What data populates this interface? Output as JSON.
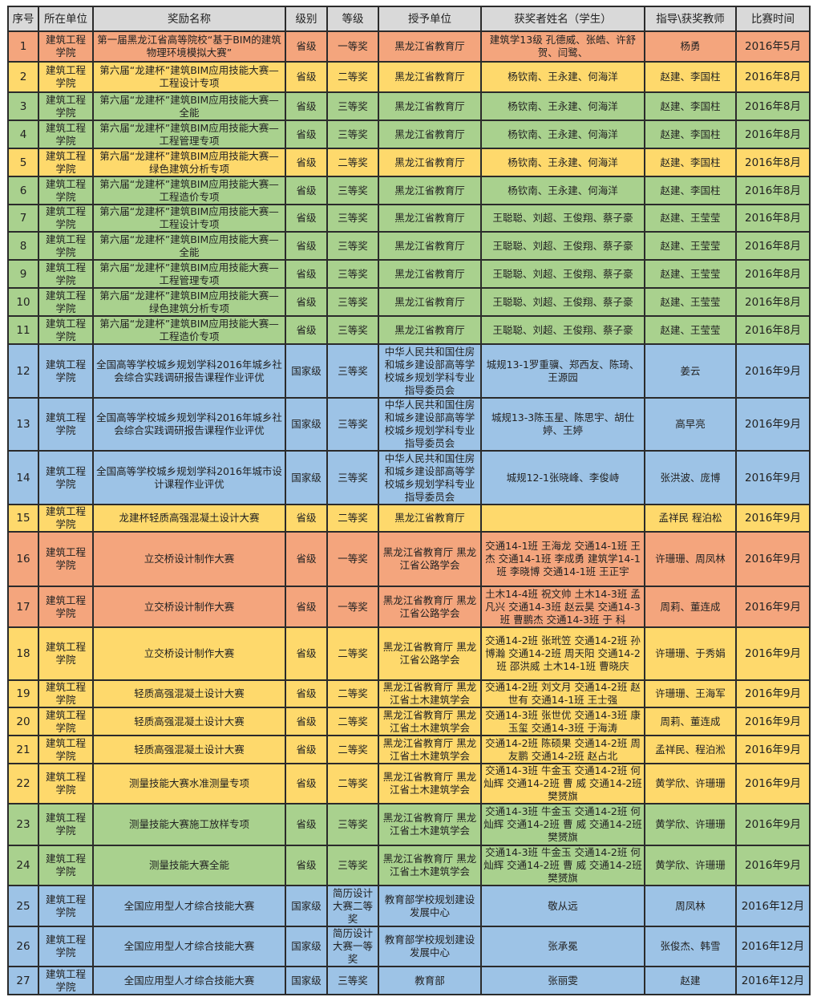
{
  "colors": {
    "header": "#d9d9d9",
    "orange": "#f4a57d",
    "yellow": "#fed96c",
    "green": "#a9d18e",
    "blue": "#9dc3e6"
  },
  "headers": [
    "序号",
    "所在单位",
    "奖励名称",
    "级别",
    "等级",
    "授予单位",
    "获奖者姓名（学生）",
    "指导\\获奖教师",
    "比赛时间"
  ],
  "rows": [
    {
      "no": "1",
      "unit": "建筑工程学院",
      "award": "第一届黑龙江省高等院校“基于BIM的建筑物理环境模拟大赛”",
      "level": "省级",
      "grade": "一等奖",
      "grantor": "黑龙江省教育厅",
      "students": "建筑学13级 孔德威、张皓、许舒贺、闫鹭、",
      "teacher": "杨勇",
      "date": "2016年5月",
      "color": "orange"
    },
    {
      "no": "2",
      "unit": "建筑工程学院",
      "award": "第六届“龙建杯”建筑BIM应用技能大赛—工程设计专项",
      "level": "省级",
      "grade": "二等奖",
      "grantor": "黑龙江省教育厅",
      "students": "杨钦南、王永建、何海洋",
      "teacher": "赵建、李国柱",
      "date": "2016年8月",
      "color": "yellow"
    },
    {
      "no": "3",
      "unit": "建筑工程学院",
      "award": "第六届“龙建杯”建筑BIM应用技能大赛—全能",
      "level": "省级",
      "grade": "三等奖",
      "grantor": "黑龙江省教育厅",
      "students": "杨钦南、王永建、何海洋",
      "teacher": "赵建、李国柱",
      "date": "2016年8月",
      "color": "green"
    },
    {
      "no": "4",
      "unit": "建筑工程学院",
      "award": "第六届“龙建杯”建筑BIM应用技能大赛—工程管理专项",
      "level": "省级",
      "grade": "三等奖",
      "grantor": "黑龙江省教育厅",
      "students": "杨钦南、王永建、何海洋",
      "teacher": "赵建、李国柱",
      "date": "2016年8月",
      "color": "green"
    },
    {
      "no": "5",
      "unit": "建筑工程学院",
      "award": "第六届“龙建杯”建筑BIM应用技能大赛—绿色建筑分析专项",
      "level": "省级",
      "grade": "二等奖",
      "grantor": "黑龙江省教育厅",
      "students": "杨钦南、王永建、何海洋",
      "teacher": "赵建、李国柱",
      "date": "2016年8月",
      "color": "yellow"
    },
    {
      "no": "6",
      "unit": "建筑工程学院",
      "award": "第六届“龙建杯”建筑BIM应用技能大赛—工程造价专项",
      "level": "省级",
      "grade": "三等奖",
      "grantor": "黑龙江省教育厅",
      "students": "杨钦南、王永建、何海洋",
      "teacher": "赵建、李国柱",
      "date": "2016年8月",
      "color": "green"
    },
    {
      "no": "7",
      "unit": "建筑工程学院",
      "award": "第六届“龙建杯”建筑BIM应用技能大赛—工程设计专项",
      "level": "省级",
      "grade": "三等奖",
      "grantor": "黑龙江省教育厅",
      "students": "王聪聪、刘超、王俊翔、蔡子豪",
      "teacher": "赵建、王莹莹",
      "date": "2016年8月",
      "color": "green"
    },
    {
      "no": "8",
      "unit": "建筑工程学院",
      "award": "第六届“龙建杯”建筑BIM应用技能大赛—全能",
      "level": "省级",
      "grade": "三等奖",
      "grantor": "黑龙江省教育厅",
      "students": "王聪聪、刘超、王俊翔、蔡子豪",
      "teacher": "赵建、王莹莹",
      "date": "2016年8月",
      "color": "green"
    },
    {
      "no": "9",
      "unit": "建筑工程学院",
      "award": "第六届“龙建杯”建筑BIM应用技能大赛—工程管理专项",
      "level": "省级",
      "grade": "三等奖",
      "grantor": "黑龙江省教育厅",
      "students": "王聪聪、刘超、王俊翔、蔡子豪",
      "teacher": "赵建、王莹莹",
      "date": "2016年8月",
      "color": "green"
    },
    {
      "no": "10",
      "unit": "建筑工程学院",
      "award": "第六届“龙建杯”建筑BIM应用技能大赛—绿色建筑分析专项",
      "level": "省级",
      "grade": "三等奖",
      "grantor": "黑龙江省教育厅",
      "students": "王聪聪、刘超、王俊翔、蔡子豪",
      "teacher": "赵建、王莹莹",
      "date": "2016年8月",
      "color": "green"
    },
    {
      "no": "11",
      "unit": "建筑工程学院",
      "award": "第六届“龙建杯”建筑BIM应用技能大赛—工程造价专项",
      "level": "省级",
      "grade": "三等奖",
      "grantor": "黑龙江省教育厅",
      "students": "王聪聪、刘超、王俊翔、蔡子豪",
      "teacher": "赵建、王莹莹",
      "date": "2016年8月",
      "color": "green"
    },
    {
      "no": "12",
      "unit": "建筑工程学院",
      "award": "全国高等学校城乡规划学科2016年城乡社会综合实践调研报告课程作业评优",
      "level": "国家级",
      "grade": "三等奖",
      "grantor": "中华人民共和国住房和城乡建设部高等学校城乡规划学科专业指导委员会",
      "students": "城规13-1罗重骥、郑西友、陈琦、王源园",
      "teacher": "姜云",
      "date": "2016年9月",
      "color": "blue"
    },
    {
      "no": "13",
      "unit": "建筑工程学院",
      "award": "全国高等学校城乡规划学科2016年城乡社会综合实践调研报告课程作业评优",
      "level": "国家级",
      "grade": "三等奖",
      "grantor": "中华人民共和国住房和城乡建设部高等学校城乡规划学科专业指导委员会",
      "students": "城规13-3陈玉星、陈思宇、胡仕婷、王婷",
      "teacher": "高早亮",
      "date": "2016年9月",
      "color": "blue"
    },
    {
      "no": "14",
      "unit": "建筑工程学院",
      "award": "全国高等学校城乡规划学科2016年城市设计课程作业评优",
      "level": "国家级",
      "grade": "三等奖",
      "grantor": "中华人民共和国住房和城乡建设部高等学校城乡规划学科专业指导委员会",
      "students": "城规12-1张晓峰、李俊峙",
      "teacher": "张洪波、庞博",
      "date": "2016年9月",
      "color": "blue"
    },
    {
      "no": "15",
      "unit": "建筑工程学院",
      "award": "龙建杯轻质高强混凝土设计大赛",
      "level": "省级",
      "grade": "二等奖",
      "grantor": "黑龙江省教育厅",
      "students": "",
      "teacher": "孟祥民 程泊松",
      "date": "2016年9月",
      "color": "yellow"
    },
    {
      "no": "16",
      "unit": "建筑工程学院",
      "award": "立交桥设计制作大赛",
      "level": "省级",
      "grade": "一等奖",
      "grantor": "黑龙江省教育厅 黑龙江省公路学会",
      "students": "交通14-1班 王海龙 交通14-1班 王 杰 交通14-1班 李成勇 建筑学14-1班 李晓博 交通14-1班 王正宇",
      "teacher": "许珊珊、周凤林",
      "date": "2016年9月",
      "color": "orange"
    },
    {
      "no": "17",
      "unit": "建筑工程学院",
      "award": "立交桥设计制作大赛",
      "level": "省级",
      "grade": "一等奖",
      "grantor": "黑龙江省教育厅 黑龙江省公路学会",
      "students": "土木14-4班 祝文帅 土木14-3班 孟凡兴 交通14-3班 赵云昊 交通14-3班 曹鹏杰 交通14-3班 于 科",
      "teacher": "周莉、董连成",
      "date": "2016年9月",
      "color": "orange"
    },
    {
      "no": "18",
      "unit": "建筑工程学院",
      "award": "立交桥设计制作大赛",
      "level": "省级",
      "grade": "二等奖",
      "grantor": "黑龙江省教育厅 黑龙江省公路学会",
      "students": "交通14-2班 张玳笠 交通14-2班 孙博瀚 交通14-2班 周天阳 交通14-2班 邵洪威 土木14-1班 曹晓庆",
      "teacher": "许珊珊、于秀娟",
      "date": "2016年9月",
      "color": "yellow"
    },
    {
      "no": "19",
      "unit": "建筑工程学院",
      "award": "轻质高强混凝土设计大赛",
      "level": "省级",
      "grade": "二等奖",
      "grantor": "黑龙江省教育厅 黑龙江省土木建筑学会",
      "students": "交通14-2班 刘文月 交通14-2班 赵世有 交通14-1班 王士强",
      "teacher": "许珊珊、王海军",
      "date": "2016年9月",
      "color": "yellow"
    },
    {
      "no": "20",
      "unit": "建筑工程学院",
      "award": "轻质高强混凝土设计大赛",
      "level": "省级",
      "grade": "二等奖",
      "grantor": "黑龙江省教育厅 黑龙江省土木建筑学会",
      "students": "交通14-3班 张世优 交通14-3班 康玉玺 交通14-3班 于海涛",
      "teacher": "周莉、董连成",
      "date": "2016年9月",
      "color": "yellow"
    },
    {
      "no": "21",
      "unit": "建筑工程学院",
      "award": "轻质高强混凝土设计大赛",
      "level": "省级",
      "grade": "二等奖",
      "grantor": "黑龙江省教育厅 黑龙江省土木建筑学会",
      "students": "交通14-2班 陈硕果 交通14-2班 周友鹏 交通14-2班 赵占北",
      "teacher": "孟祥民、程泊淞",
      "date": "2016年9月",
      "color": "yellow"
    },
    {
      "no": "22",
      "unit": "建筑工程学院",
      "award": "测量技能大赛水准测量专项",
      "level": "省级",
      "grade": "二等奖",
      "grantor": "黑龙江省教育厅 黑龙江省土木建筑学会",
      "students": "交通14-3班 牛金玉 交通14-2班 何灿辉 交通14-2班 曹 威 交通14-2班 樊赟旗",
      "teacher": "黄学欣、许珊珊",
      "date": "2016年9月",
      "color": "yellow"
    },
    {
      "no": "23",
      "unit": "建筑工程学院",
      "award": "测量技能大赛施工放样专项",
      "level": "省级",
      "grade": "三等奖",
      "grantor": "黑龙江省教育厅 黑龙江省土木建筑学会",
      "students": "交通14-3班 牛金玉 交通14-2班 何灿辉 交通14-2班 曹 威 交通14-2班 樊赟旗",
      "teacher": "黄学欣、许珊珊",
      "date": "2016年9月",
      "color": "green"
    },
    {
      "no": "24",
      "unit": "建筑工程学院",
      "award": "测量技能大赛全能",
      "level": "省级",
      "grade": "三等奖",
      "grantor": "黑龙江省教育厅 黑龙江省土木建筑学会",
      "students": "交通14-3班 牛金玉 交通14-2班 何灿辉 交通14-2班 曹 威 交通14-2班 樊赟旗",
      "teacher": "黄学欣、许珊珊",
      "date": "2016年9月",
      "color": "green"
    },
    {
      "no": "25",
      "unit": "建筑工程学院",
      "award": "全国应用型人才综合技能大赛",
      "level": "国家级",
      "grade": "简历设计大赛二等奖",
      "grantor": "教育部学校规划建设发展中心",
      "students": "敬从远",
      "teacher": "周凤林",
      "date": "2016年12月",
      "color": "blue"
    },
    {
      "no": "26",
      "unit": "建筑工程学院",
      "award": "全国应用型人才综合技能大赛",
      "level": "国家级",
      "grade": "简历设计大赛一等奖",
      "grantor": "教育部学校规划建设发展中心",
      "students": "张承冕",
      "teacher": "张俊杰、韩雪",
      "date": "2016年12月",
      "color": "blue"
    },
    {
      "no": "27",
      "unit": "建筑工程学院",
      "award": "全国应用型人才综合技能大赛",
      "level": "国家级",
      "grade": "三等奖",
      "grantor": "教育部",
      "students": "张丽雯",
      "teacher": "赵建",
      "date": "2016年12月",
      "color": "blue"
    }
  ]
}
